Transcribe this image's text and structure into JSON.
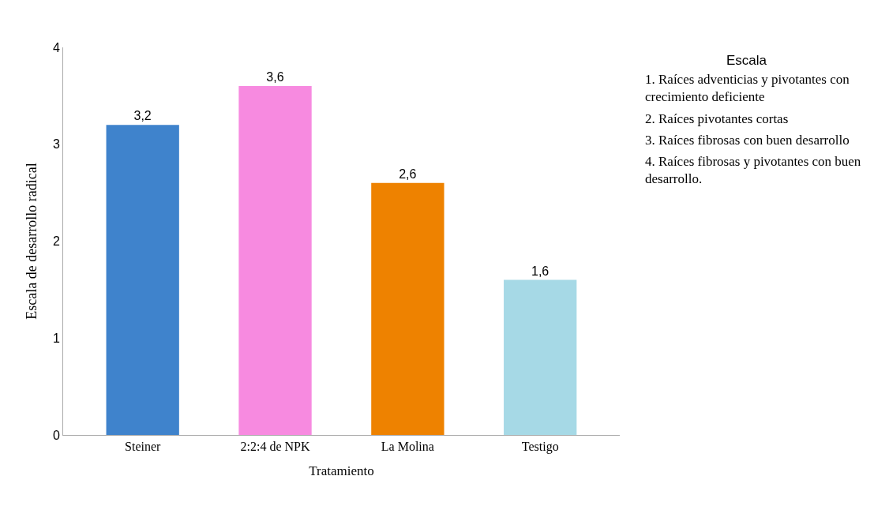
{
  "chart_data": {
    "type": "bar",
    "xlabel": "Tratamiento",
    "ylabel": "Escala de desarrollo radical",
    "categories": [
      "Steiner",
      "2:2:4 de NPK",
      "La Molina",
      "Testigo"
    ],
    "values": [
      3.2,
      3.6,
      2.6,
      1.6
    ],
    "value_labels": [
      "3,2",
      "3,6",
      "2,6",
      "1,6"
    ],
    "colors": [
      "#3f83cc",
      "#f78ae0",
      "#ee8200",
      "#a6d9e6"
    ],
    "ylim": [
      0,
      4
    ],
    "yticks": [
      0,
      1,
      2,
      3,
      4
    ],
    "annotations": [
      "Escala",
      "1. Raíces adventicias y pivotantes con crecimiento deficiente",
      "2. Raíces pivotantes cortas",
      "3. Raíces fibrosas con buen desarrollo",
      "4. Raíces fibrosas y pivotantes con buen desarrollo."
    ]
  }
}
